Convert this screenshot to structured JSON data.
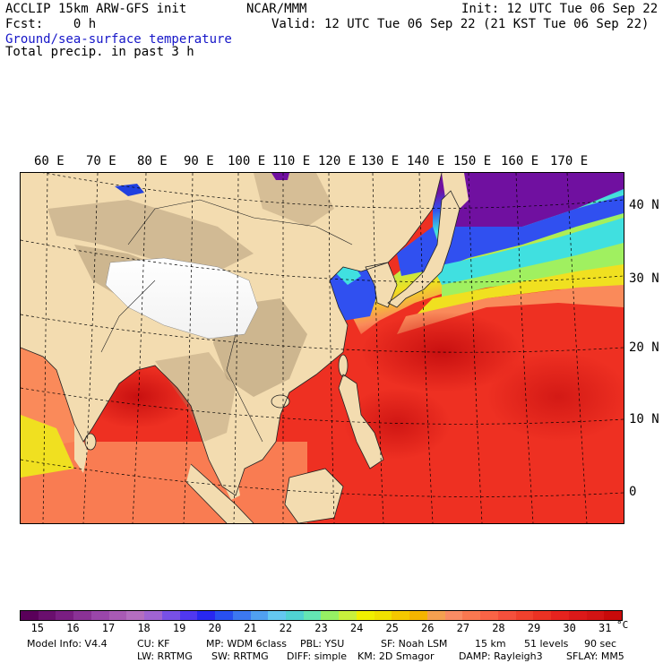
{
  "header": {
    "model": "ACCLIP 15km ARW-GFS init",
    "org": "NCAR/MMM",
    "init": "Init: 12 UTC Tue 06 Sep 22",
    "fcst": "Fcst:    0 h",
    "valid": "Valid: 12 UTC Tue 06 Sep 22 (21 KST Tue 06 Sep 22)",
    "field1": "Ground/sea-surface temperature",
    "field2": "Total precip. in past 3 h"
  },
  "map": {
    "lon_labels": [
      "60 E",
      "70 E",
      "80 E",
      "90 E",
      "100 E",
      "110 E",
      "120 E",
      "130 E",
      "140 E",
      "150 E",
      "160 E",
      "170 E"
    ],
    "lat_labels": [
      "40 N",
      "30 N",
      "20 N",
      "10 N",
      "0"
    ],
    "colors": {
      "land": "#f3dcb0",
      "mountain": "#a08868",
      "snow": "#ffffff",
      "ocean_warm": "#ee3022",
      "ocean_hot": "#d81818",
      "ocean_mild": "#fa8a5a",
      "ocean_yellow": "#f0e020",
      "ocean_green": "#a0f060",
      "ocean_cyan": "#40e0e0",
      "ocean_blue": "#3050f0",
      "ocean_purple": "#7010a0"
    }
  },
  "colorbar": {
    "ticks": [
      "15",
      "16",
      "17",
      "18",
      "19",
      "20",
      "21",
      "22",
      "23",
      "24",
      "25",
      "26",
      "27",
      "28",
      "29",
      "30",
      "31"
    ],
    "unit": "°C",
    "colors": [
      "#5a005a",
      "#6a0f6e",
      "#7a1e82",
      "#8a3296",
      "#9a46aa",
      "#a85ab4",
      "#b46ec0",
      "#a064d2",
      "#7850e6",
      "#5038f0",
      "#2828f0",
      "#2850f0",
      "#3c78f0",
      "#50a0f0",
      "#64c8f0",
      "#50d2d2",
      "#64e6b4",
      "#96f064",
      "#c8f03c",
      "#f0f000",
      "#f0e100",
      "#f5c800",
      "#f5b400",
      "#f5a050",
      "#fa8c64",
      "#fa7850",
      "#fa6446",
      "#f5503c",
      "#f0412d",
      "#eb3223",
      "#e6231e",
      "#dc1919",
      "#d21414",
      "#c80a0a"
    ]
  },
  "footer": {
    "line1_parts": [
      "Model Info: V4.4",
      "CU: KF",
      "MP: WDM 6class",
      "PBL: YSU",
      "SF: Noah LSM",
      "15 km",
      "51 levels",
      "90 sec"
    ],
    "line2_parts": [
      "LW: RRTMG",
      "SW: RRTMG",
      "DIFF: simple",
      "KM: 2D Smagor",
      "DAMP: Rayleigh3",
      "SFLAY: MM5"
    ]
  }
}
